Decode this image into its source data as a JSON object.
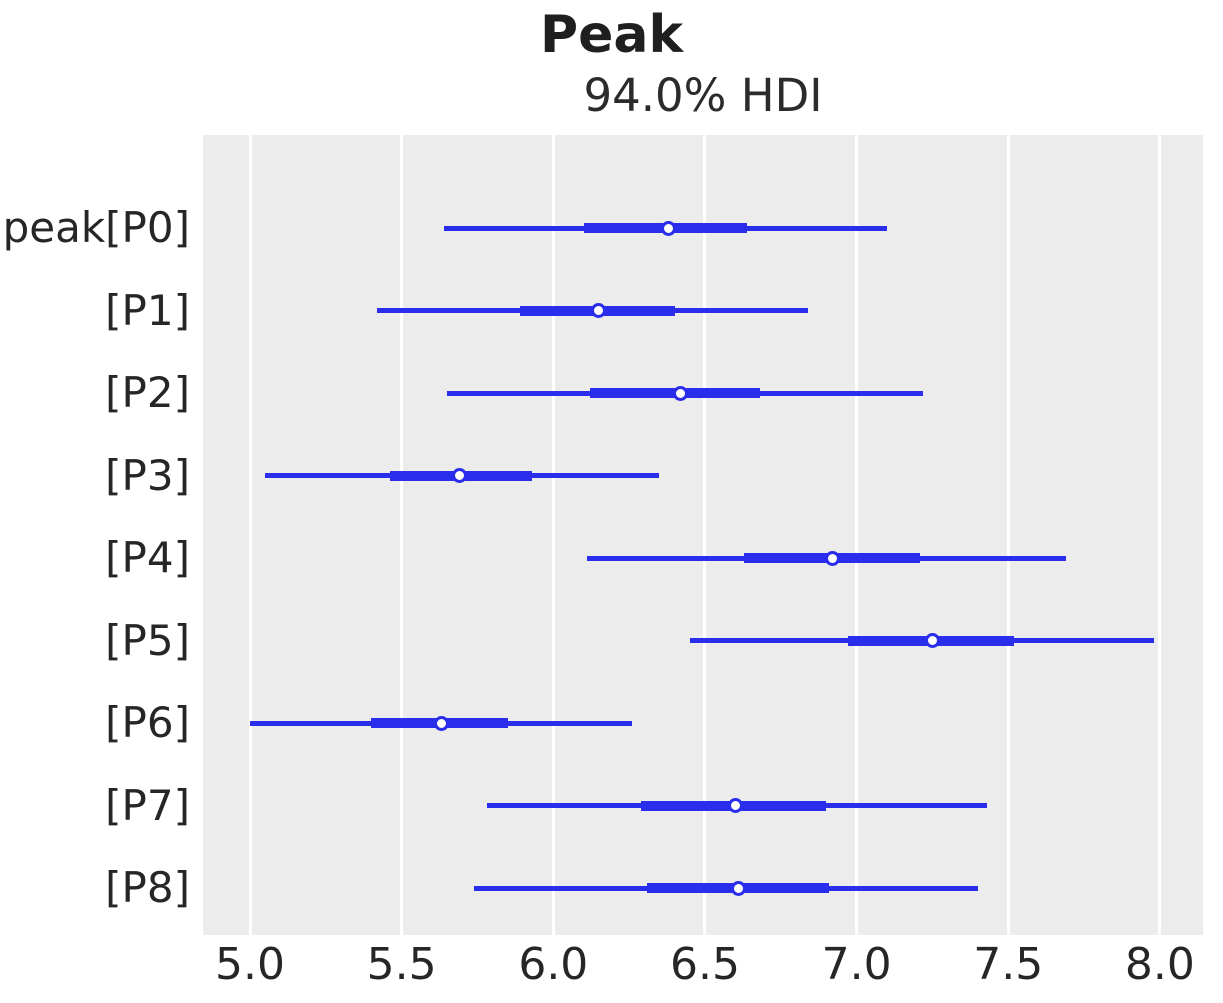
{
  "figure": {
    "title": "Peak",
    "subtitle": "94.0% HDI"
  },
  "colors": {
    "line_blue": "#2a2eec",
    "plot_background": "#ececec",
    "gridline": "#ffffff",
    "text": "#262626",
    "marker_face": "#ffffff"
  },
  "chart_data": {
    "type": "forest",
    "title": "Peak",
    "subtitle": "94.0% HDI",
    "hdi_probability": "94.0%",
    "xlabel": "",
    "ylabel": "",
    "xlim": [
      4.845,
      8.142
    ],
    "grid": "vertical-only",
    "xticks": [
      {
        "value": 5.0,
        "label": "5.0"
      },
      {
        "value": 5.5,
        "label": "5.5"
      },
      {
        "value": 6.0,
        "label": "6.0"
      },
      {
        "value": 6.5,
        "label": "6.5"
      },
      {
        "value": 7.0,
        "label": "7.0"
      },
      {
        "value": 7.5,
        "label": "7.5"
      },
      {
        "value": 8.0,
        "label": "8.0"
      }
    ],
    "rows": [
      {
        "label": "peak[P0]",
        "hdi": [
          5.64,
          7.1
        ],
        "iqr": [
          6.1,
          6.64
        ],
        "median": 6.38
      },
      {
        "label": "[P1]",
        "hdi": [
          5.42,
          6.84
        ],
        "iqr": [
          5.89,
          6.4
        ],
        "median": 6.15
      },
      {
        "label": "[P2]",
        "hdi": [
          5.65,
          7.22
        ],
        "iqr": [
          6.12,
          6.68
        ],
        "median": 6.42
      },
      {
        "label": "[P3]",
        "hdi": [
          5.05,
          6.35
        ],
        "iqr": [
          5.46,
          5.93
        ],
        "median": 5.69
      },
      {
        "label": "[P4]",
        "hdi": [
          6.11,
          7.69
        ],
        "iqr": [
          6.63,
          7.21
        ],
        "median": 6.92
      },
      {
        "label": "[P5]",
        "hdi": [
          6.45,
          7.98
        ],
        "iqr": [
          6.97,
          7.52
        ],
        "median": 7.25
      },
      {
        "label": "[P6]",
        "hdi": [
          5.0,
          6.26
        ],
        "iqr": [
          5.4,
          5.85
        ],
        "median": 5.63
      },
      {
        "label": "[P7]",
        "hdi": [
          5.78,
          7.43
        ],
        "iqr": [
          6.29,
          6.9
        ],
        "median": 6.6
      },
      {
        "label": "[P8]",
        "hdi": [
          5.74,
          7.4
        ],
        "iqr": [
          6.31,
          6.91
        ],
        "median": 6.61
      }
    ]
  }
}
